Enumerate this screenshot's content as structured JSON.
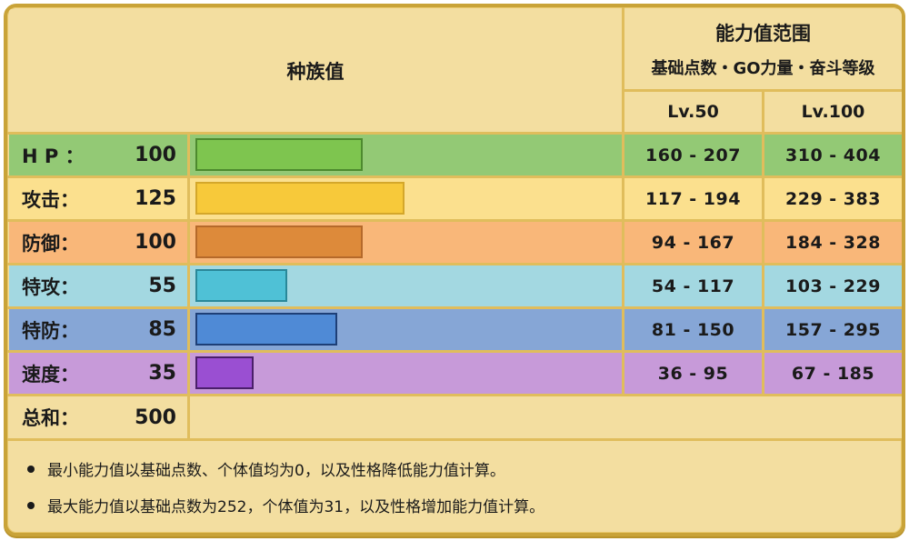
{
  "header": {
    "base_stats_title": "种族值",
    "range_title": "能力值范围",
    "range_subtitle": "基础点数・GO力量・奋斗等级",
    "lv50": "Lv.50",
    "lv100": "Lv.100"
  },
  "stats": [
    {
      "label": "H P ：",
      "value": "100",
      "base": 100,
      "lv50": "160 - 207",
      "lv100": "310 - 404",
      "row_color": "#93c975",
      "bar_color": "#7ec54f",
      "bar_border": "#4d8a2e"
    },
    {
      "label": "攻击：",
      "value": "125",
      "base": 125,
      "lv50": "117 - 194",
      "lv100": "229 - 383",
      "row_color": "#fbe08e",
      "bar_color": "#f7c93a",
      "bar_border": "#d4a72a"
    },
    {
      "label": "防御：",
      "value": "100",
      "base": 100,
      "lv50": "94 - 167",
      "lv100": "184 - 328",
      "row_color": "#f9b779",
      "bar_color": "#dd8a3a",
      "bar_border": "#b5692a"
    },
    {
      "label": "特攻：",
      "value": "55",
      "base": 55,
      "lv50": "54 - 117",
      "lv100": "103 - 229",
      "row_color": "#a3d8e1",
      "bar_color": "#4fc1d6",
      "bar_border": "#2a8899"
    },
    {
      "label": "特防：",
      "value": "85",
      "base": 85,
      "lv50": "81 - 150",
      "lv100": "157 - 295",
      "row_color": "#86a6d6",
      "bar_color": "#4f8ad6",
      "bar_border": "#1e3f77"
    },
    {
      "label": "速度：",
      "value": "35",
      "base": 35,
      "lv50": "36 - 95",
      "lv100": "67 - 185",
      "row_color": "#c79ad9",
      "bar_color": "#9a4fd2",
      "bar_border": "#4a1f6a"
    }
  ],
  "total": {
    "label": "总和：",
    "value": "500"
  },
  "notes": [
    "最小能力值以基础点数、个体值均为0，以及性格降低能力值计算。",
    "最大能力值以基础点数为252，个体值为31，以及性格增加能力值计算。"
  ],
  "colors": {
    "frame_border": "#c9a338",
    "panel_bg": "#f3dea0",
    "grid_line": "#e0bd5c"
  }
}
